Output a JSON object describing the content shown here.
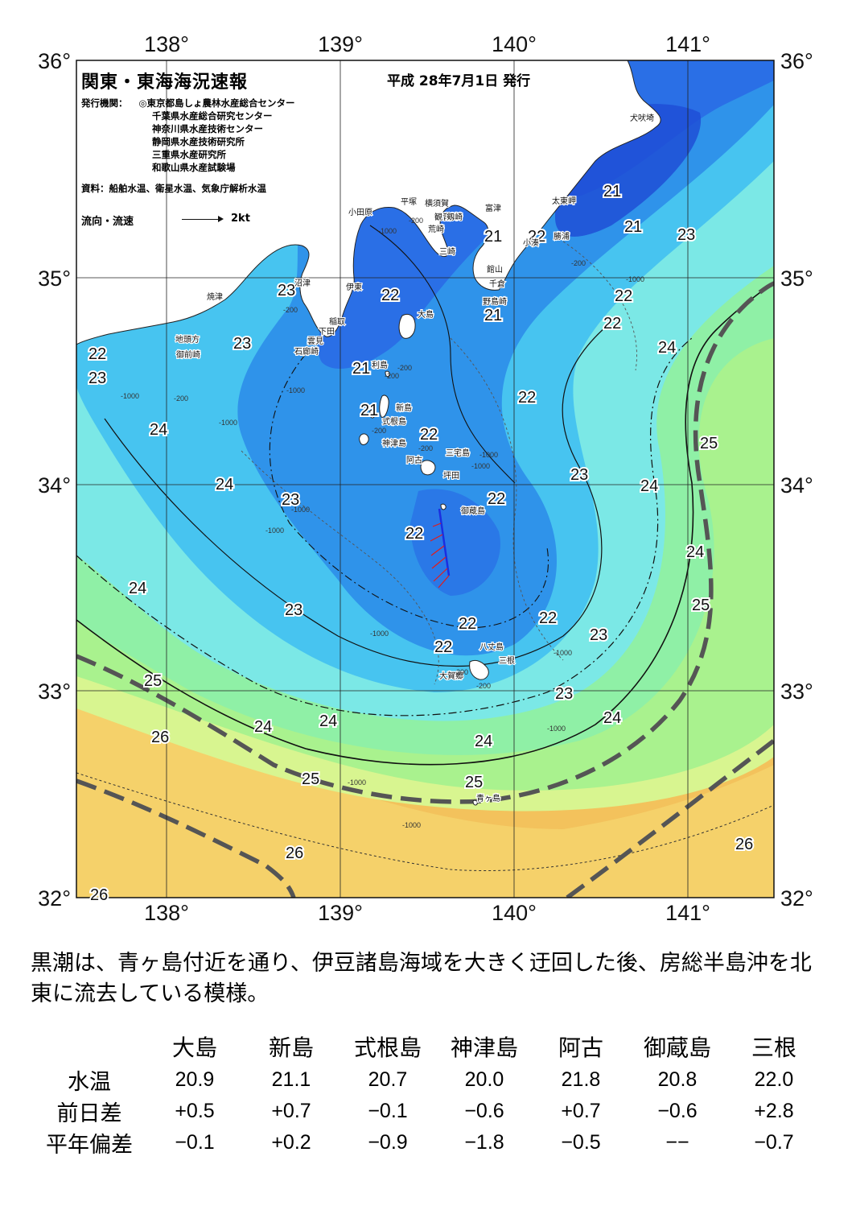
{
  "map": {
    "title": "関東・東海海況速報",
    "issued": "平成 28年7月1日 発行",
    "publisher_label": "発行機関：",
    "publishers": [
      "◎東京都島しょ農林水産総合センター",
      "千葉県水産総合研究センター",
      "神奈川県水産技術センター",
      "静岡県水産技術研究所",
      "三重県水産研究所",
      "和歌山県水産試験場"
    ],
    "sources": "資料：船舶水温、衛星水温、気象庁解析水温",
    "flow_legend_label": "流向・流速",
    "flow_legend_speed": "2kt",
    "lon_labels": [
      "138°",
      "139°",
      "140°",
      "141°"
    ],
    "lat_labels": [
      "36°",
      "35°",
      "34°",
      "33°",
      "32°"
    ],
    "isotherm_labels": [
      "21",
      "21",
      "21",
      "22",
      "21",
      "23",
      "22",
      "22",
      "23",
      "22",
      "23",
      "22",
      "22",
      "23",
      "24",
      "21",
      "21",
      "22",
      "22",
      "24",
      "23",
      "24",
      "22",
      "24",
      "23",
      "25",
      "22",
      "24",
      "24",
      "23",
      "22",
      "22",
      "25",
      "23",
      "23",
      "25",
      "24",
      "24",
      "26",
      "24",
      "24",
      "25",
      "25",
      "26",
      "26",
      "26"
    ],
    "place_names": [
      "犬吠埼",
      "太東岬",
      "勝浦",
      "小湊",
      "富津",
      "横須賀",
      "観音崎",
      "剱崎",
      "荒崎",
      "三崎",
      "館山",
      "千倉",
      "野島崎",
      "平塚",
      "小田原",
      "沼津",
      "伊東",
      "焼津",
      "稲取",
      "下田",
      "雲見",
      "石廊崎",
      "地頭方",
      "御前崎",
      "大島",
      "利島",
      "新島",
      "式根島",
      "神津島",
      "三宅島",
      "阿古",
      "坪田",
      "御蔵島",
      "八丈島",
      "三根",
      "大賀郷",
      "青ヶ島"
    ],
    "depth_labels": [
      "-200",
      "-200",
      "-1000",
      "-200",
      "-1000",
      "-200",
      "-200",
      "-200",
      "-200",
      "-1000",
      "-1000",
      "-200",
      "-1000",
      "-1000",
      "-1000",
      "-1000",
      "-1000",
      "-1000",
      "-1000",
      "-200",
      "-200",
      "-1000",
      "-1000",
      "-1000"
    ]
  },
  "legend_colors": {
    "sst_20": "#1e4fd6",
    "sst_21": "#2a6fe6",
    "sst_22": "#2f93ea",
    "sst_23": "#47c4f0",
    "sst_24": "#7be8e6",
    "sst_24b": "#8ff0a6",
    "sst_25": "#d8f590",
    "sst_26": "#f5e07a",
    "sst_27": "#f3c25c",
    "kuroshio_axis": "#555555",
    "vector": "#1a2ee0",
    "vector_arrow": "#e21b1b"
  },
  "summary": "黒潮は、青ヶ島付近を通り、伊豆諸島海域を大きく迂回した後、房総半島沖を北東に流去している模様。",
  "obs_table": {
    "columns": [
      "大島",
      "新島",
      "式根島",
      "神津島",
      "阿古",
      "御蔵島",
      "三根"
    ],
    "rows": [
      {
        "label": "水温",
        "values": [
          "20.9",
          "21.1",
          "20.7",
          "20.0",
          "21.8",
          "20.8",
          "22.0"
        ]
      },
      {
        "label": "前日差",
        "values": [
          "+0.5",
          "+0.7",
          "−0.1",
          "−0.6",
          "+0.7",
          "−0.6",
          "+2.8"
        ]
      },
      {
        "label": "平年偏差",
        "values": [
          "−0.1",
          "+0.2",
          "−0.9",
          "−1.8",
          "−0.5",
          "−−",
          "−0.7"
        ]
      }
    ]
  }
}
